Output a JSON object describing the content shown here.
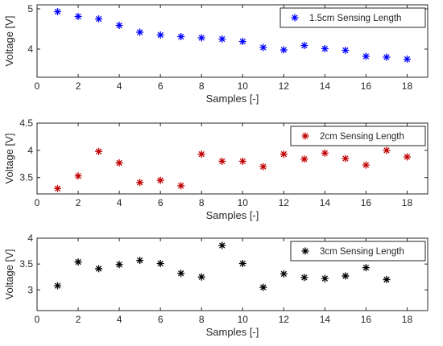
{
  "chart_data": [
    {
      "type": "scatter",
      "xlabel": "Samples [-]",
      "ylabel": "Voltage [V]",
      "xlim": [
        0,
        19
      ],
      "ylim": [
        3.3,
        5.1
      ],
      "xticks": [
        "0",
        "2",
        "4",
        "6",
        "8",
        "10",
        "12",
        "14",
        "16",
        "18"
      ],
      "yticks": [
        "4",
        "5"
      ],
      "legend_position": "top-right",
      "series": [
        {
          "name": "1.5cm Sensing Length",
          "color": "#0000ff",
          "marker": "asterisk",
          "x": [
            1,
            2,
            3,
            4,
            5,
            6,
            7,
            8,
            9,
            10,
            11,
            12,
            13,
            14,
            15,
            16,
            17,
            18
          ],
          "y": [
            4.93,
            4.81,
            4.75,
            4.59,
            4.42,
            4.35,
            4.31,
            4.28,
            4.25,
            4.19,
            4.04,
            3.98,
            4.09,
            4.01,
            3.97,
            3.82,
            3.8,
            3.75
          ]
        }
      ]
    },
    {
      "type": "scatter",
      "xlabel": "Samples [-]",
      "ylabel": "Voltage [V]",
      "xlim": [
        0,
        19
      ],
      "ylim": [
        3.2,
        4.5
      ],
      "xticks": [
        "0",
        "2",
        "4",
        "6",
        "8",
        "10",
        "12",
        "14",
        "16",
        "18"
      ],
      "yticks": [
        "3.5",
        "4",
        "4.5"
      ],
      "legend_position": "top-right",
      "series": [
        {
          "name": "2cm Sensing Length",
          "color": "#c00000",
          "marker": "asterisk",
          "x": [
            1,
            2,
            3,
            4,
            5,
            6,
            7,
            8,
            9,
            10,
            11,
            12,
            13,
            14,
            15,
            16,
            17,
            18
          ],
          "y": [
            3.3,
            3.53,
            3.98,
            3.77,
            3.41,
            3.45,
            3.35,
            3.93,
            3.8,
            3.8,
            3.7,
            3.93,
            3.84,
            3.95,
            3.85,
            3.73,
            4.0,
            3.88
          ]
        }
      ]
    },
    {
      "type": "scatter",
      "xlabel": "Samples [-]",
      "ylabel": "Voltage [V]",
      "xlim": [
        0,
        19
      ],
      "ylim": [
        2.6,
        4.0
      ],
      "xticks": [
        "0",
        "2",
        "4",
        "6",
        "8",
        "10",
        "12",
        "14",
        "16",
        "18"
      ],
      "yticks": [
        "3",
        "3.5",
        "4"
      ],
      "legend_position": "top-right",
      "series": [
        {
          "name": "3cm Sensing Length",
          "color": "#000000",
          "marker": "asterisk",
          "x": [
            1,
            2,
            3,
            4,
            5,
            6,
            7,
            8,
            9,
            10,
            11,
            12,
            13,
            14,
            15,
            16,
            17
          ],
          "y": [
            3.08,
            3.54,
            3.41,
            3.49,
            3.57,
            3.51,
            3.32,
            3.25,
            3.86,
            3.51,
            3.05,
            3.31,
            3.24,
            3.22,
            3.27,
            3.43,
            3.2
          ]
        }
      ]
    }
  ]
}
